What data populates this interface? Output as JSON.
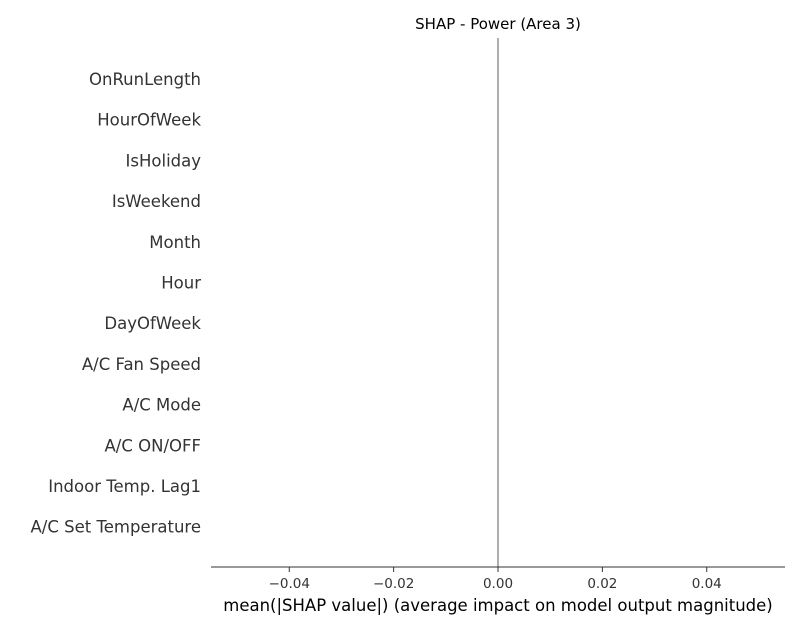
{
  "chart_data": {
    "type": "bar",
    "title": "SHAP - Power (Area 3)",
    "xlabel": "mean(|SHAP value|) (average impact on model output magnitude)",
    "ylabel": "",
    "categories": [
      "OnRunLength",
      "HourOfWeek",
      "IsHoliday",
      "IsWeekend",
      "Month",
      "Hour",
      "DayOfWeek",
      "A/C Fan Speed",
      "A/C Mode",
      "A/C ON/OFF",
      "Indoor Temp. Lag1",
      "A/C Set Temperature"
    ],
    "values": [
      0,
      0,
      0,
      0,
      0,
      0,
      0,
      0,
      0,
      0,
      0,
      0
    ],
    "orientation": "horizontal",
    "xlim": [
      -0.055,
      0.055
    ],
    "xticks": [
      -0.04,
      -0.02,
      0.0,
      0.02,
      0.04
    ],
    "xtick_labels": [
      "−0.04",
      "−0.02",
      "0.00",
      "0.02",
      "0.04"
    ],
    "reference_line_x": 0,
    "colors": {
      "bar": "#008bfb",
      "zero_line": "#999999",
      "axis": "#333333",
      "text": "#333333"
    },
    "grid": false
  }
}
